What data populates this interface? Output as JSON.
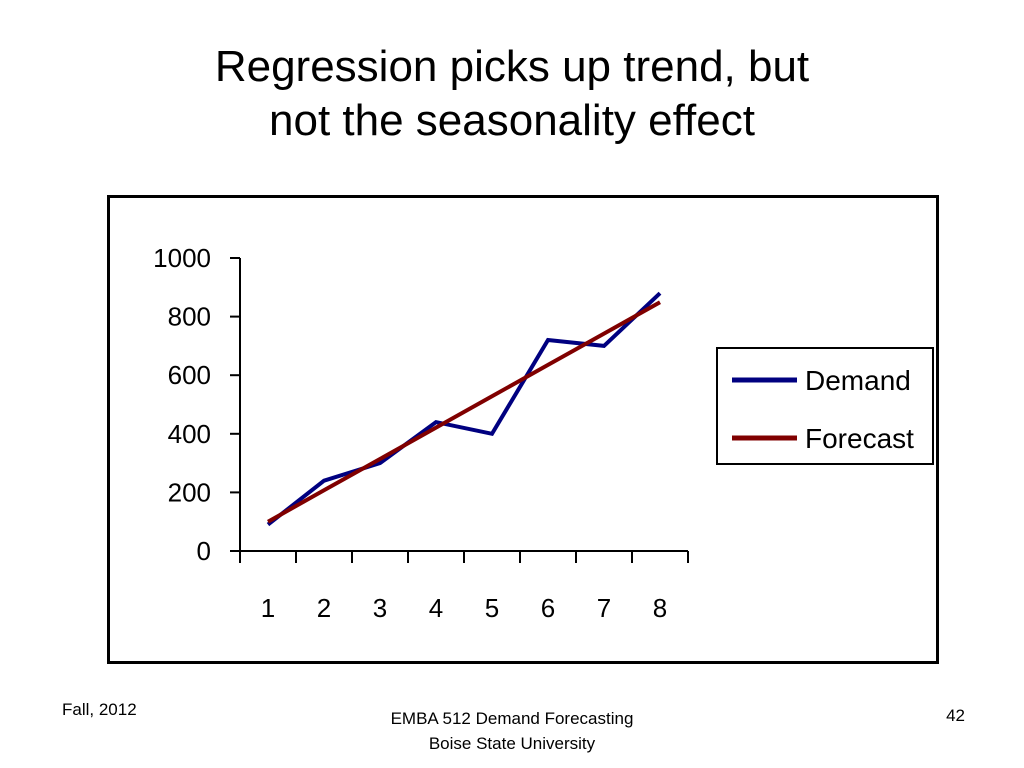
{
  "slide": {
    "title_line1": "Regression picks up trend, but",
    "title_line2": "not the seasonality effect",
    "footer_left": "Fall, 2012",
    "footer_center_line1": "EMBA 512 Demand Forecasting",
    "footer_center_line2": "Boise State University",
    "page_number": "42"
  },
  "chart_data": {
    "type": "line",
    "title": "",
    "xlabel": "",
    "ylabel": "",
    "categories": [
      "1",
      "2",
      "3",
      "4",
      "5",
      "6",
      "7",
      "8"
    ],
    "yticks": [
      "0",
      "200",
      "400",
      "600",
      "800",
      "1000"
    ],
    "ylim": [
      0,
      1000
    ],
    "grid": false,
    "legend_position": "right",
    "series": [
      {
        "name": "Demand",
        "color": "#000080",
        "values": [
          90,
          240,
          300,
          440,
          400,
          720,
          700,
          880
        ]
      },
      {
        "name": "Forecast",
        "color": "#800000",
        "values": [
          100,
          207,
          314,
          421,
          528,
          635,
          742,
          849
        ]
      }
    ]
  }
}
